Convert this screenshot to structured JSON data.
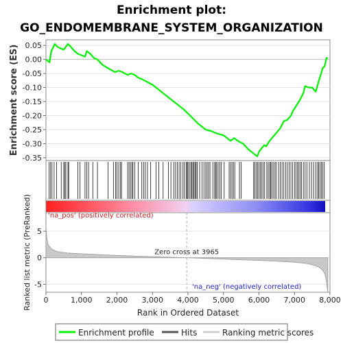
{
  "chart_data": {
    "type": "line",
    "title_lines": [
      "Enrichment plot:",
      "GO_ENDOMEMBRANE_SYSTEM_ORGANIZATION"
    ],
    "es_panel": {
      "ylabel": "Enrichment score (ES)",
      "ylim": [
        -0.36,
        0.07
      ],
      "yticks": [
        0.05,
        0.0,
        -0.05,
        -0.1,
        -0.15,
        -0.2,
        -0.25,
        -0.3,
        -0.35
      ],
      "ytick_labels": [
        "0.05",
        "0.00",
        "-0.05",
        "-0.10",
        "-0.15",
        "-0.20",
        "-0.25",
        "-0.30",
        "-0.35"
      ],
      "series": [
        {
          "name": "Enrichment profile",
          "color": "#00ee00",
          "x": [
            0,
            100,
            150,
            250,
            320,
            400,
            500,
            560,
            620,
            700,
            800,
            900,
            1000,
            1100,
            1150,
            1250,
            1350,
            1450,
            1600,
            1800,
            1950,
            2050,
            2150,
            2300,
            2400,
            2500,
            2600,
            2700,
            2850,
            3000,
            3150,
            3300,
            3500,
            3700,
            3900,
            4100,
            4300,
            4500,
            4650,
            4750,
            4850,
            5000,
            5200,
            5300,
            5400,
            5550,
            5700,
            5850,
            5950,
            6000,
            6050,
            6150,
            6200,
            6300,
            6400,
            6500,
            6600,
            6700,
            6800,
            6900,
            6950,
            7050,
            7150,
            7250,
            7300,
            7400,
            7500,
            7600,
            7700,
            7750,
            7800,
            7850,
            7900,
            7940
          ],
          "values": [
            0.0,
            -0.01,
            0.03,
            0.055,
            0.045,
            0.04,
            0.035,
            0.045,
            0.055,
            0.045,
            0.03,
            0.02,
            0.015,
            0.01,
            0.03,
            0.02,
            0.005,
            0.0,
            -0.02,
            -0.035,
            -0.045,
            -0.04,
            -0.045,
            -0.055,
            -0.05,
            -0.055,
            -0.065,
            -0.07,
            -0.08,
            -0.09,
            -0.105,
            -0.12,
            -0.14,
            -0.16,
            -0.18,
            -0.205,
            -0.23,
            -0.25,
            -0.255,
            -0.26,
            -0.265,
            -0.27,
            -0.29,
            -0.28,
            -0.29,
            -0.3,
            -0.32,
            -0.335,
            -0.345,
            -0.33,
            -0.32,
            -0.305,
            -0.31,
            -0.29,
            -0.275,
            -0.26,
            -0.245,
            -0.22,
            -0.215,
            -0.2,
            -0.185,
            -0.165,
            -0.145,
            -0.12,
            -0.095,
            -0.1,
            -0.1,
            -0.115,
            -0.07,
            -0.05,
            -0.03,
            -0.025,
            0.005,
            0.005
          ]
        }
      ]
    },
    "hits_panel": {
      "hit_ranks": [
        90,
        130,
        170,
        230,
        300,
        430,
        500,
        530,
        560,
        620,
        640,
        900,
        960,
        1100,
        1150,
        1200,
        1320,
        1450,
        1750,
        1900,
        1960,
        2000,
        2050,
        2100,
        2130,
        2300,
        2340,
        2380,
        2420,
        2450,
        2500,
        2600,
        2700,
        2750,
        2800,
        2860,
        2950,
        3100,
        3180,
        3300,
        3450,
        3520,
        3600,
        3650,
        3700,
        3750,
        3800,
        3860,
        3900,
        3950,
        3980,
        4000,
        4040,
        4080,
        4110,
        4140,
        4170,
        4200,
        4230,
        4260,
        4330,
        4400,
        4450,
        4500,
        4540,
        4580,
        4620,
        4700,
        4750,
        4780,
        4810,
        4850,
        4900,
        4940,
        5020,
        5160,
        5200,
        5240,
        5280,
        5320,
        5450,
        5500,
        5850,
        5880,
        5920,
        5960,
        6000,
        6040,
        6080,
        6120,
        6160,
        6220,
        6260,
        6300,
        6330,
        6360,
        6400,
        6450,
        6480,
        6550,
        6600,
        6650,
        6700,
        6750,
        6800,
        6850,
        6900,
        6950,
        7000,
        7040,
        7080,
        7120,
        7160,
        7200,
        7250,
        7300,
        7350,
        7420,
        7480,
        7540,
        7600,
        7650,
        7680,
        7720,
        7760,
        7800,
        7840
      ]
    },
    "metric_panel": {
      "ylabel": "Ranked list metric (PreRanked)",
      "xlabel": "Rank in Ordered Dataset",
      "xlim": [
        0,
        8000
      ],
      "xticks": [
        0,
        1000,
        2000,
        3000,
        4000,
        5000,
        6000,
        7000,
        8000
      ],
      "xtick_labels": [
        "0",
        "1,000",
        "2,000",
        "3,000",
        "4,000",
        "5,000",
        "6,000",
        "7,000",
        "8,000"
      ],
      "ylim": [
        -6.5,
        8.5
      ],
      "yticks": [
        5,
        0,
        -5
      ],
      "ytick_labels": [
        "5",
        "0",
        "-5"
      ],
      "x": [
        0,
        20,
        60,
        150,
        300,
        600,
        1000,
        1500,
        2000,
        2500,
        3000,
        3500,
        3965,
        4500,
        5000,
        5500,
        6000,
        6500,
        7000,
        7300,
        7500,
        7700,
        7800,
        7850,
        7880,
        7910,
        7940
      ],
      "values": [
        6.0,
        4.0,
        2.5,
        1.7,
        1.2,
        0.9,
        0.75,
        0.6,
        0.45,
        0.32,
        0.2,
        0.1,
        0.0,
        -0.12,
        -0.25,
        -0.38,
        -0.5,
        -0.65,
        -0.85,
        -1.05,
        -1.3,
        -1.8,
        -2.4,
        -3.0,
        -3.8,
        -5.0,
        -6.5
      ],
      "zero_cross_label": "Zero cross at 3965",
      "zero_cross_rank": 3965,
      "pos_label": "'na_pos' (positively correlated)",
      "neg_label": "'na_neg' (negatively correlated)"
    },
    "legend": {
      "position": "bottom",
      "items": [
        {
          "label": "Enrichment profile",
          "color": "#00ee00"
        },
        {
          "label": "Hits",
          "color": "#555555"
        },
        {
          "label": "Ranking metric scores",
          "color": "#cccccc"
        }
      ]
    },
    "n_genes": 7940
  }
}
